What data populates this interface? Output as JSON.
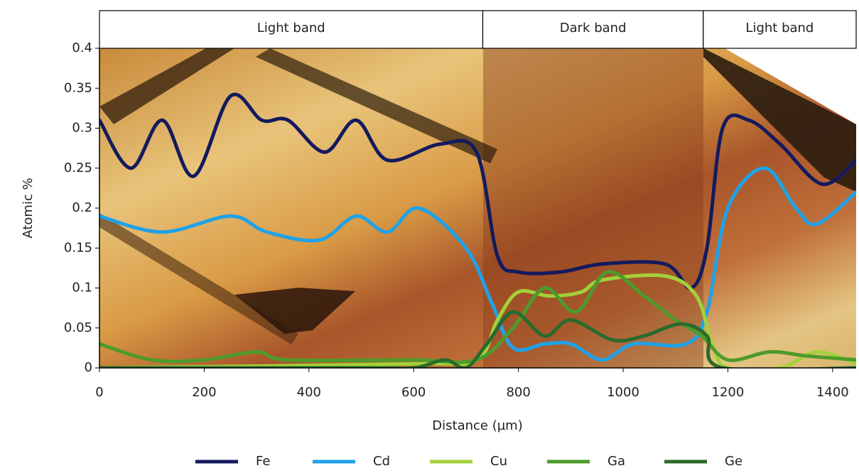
{
  "chart_data": {
    "type": "line",
    "y_label": "Atomic %",
    "x_label": "Distance (µm)",
    "bands": [
      {
        "label": "Light band",
        "start": 0,
        "end": 732
      },
      {
        "label": "Dark band",
        "start": 732,
        "end": 1153
      },
      {
        "label": "Light band",
        "start": 1153,
        "end": 1445
      }
    ],
    "xlim": [
      0,
      1445
    ],
    "ylim": [
      0,
      0.4
    ],
    "xticks": [
      0,
      200,
      400,
      600,
      800,
      1000,
      1200,
      1400
    ],
    "yticks": [
      0,
      0.05,
      0.1,
      0.15,
      0.2,
      0.25,
      0.3,
      0.35,
      0.4
    ],
    "series": [
      {
        "name": "Fe",
        "color": "#141a5e",
        "x": [
          0,
          60,
          120,
          180,
          250,
          310,
          360,
          430,
          490,
          550,
          650,
          720,
          760,
          800,
          880,
          960,
          1080,
          1130,
          1160,
          1190,
          1240,
          1300,
          1380,
          1445
        ],
        "values": [
          0.31,
          0.25,
          0.31,
          0.24,
          0.34,
          0.31,
          0.31,
          0.27,
          0.31,
          0.26,
          0.28,
          0.27,
          0.14,
          0.12,
          0.12,
          0.13,
          0.13,
          0.1,
          0.15,
          0.3,
          0.31,
          0.28,
          0.23,
          0.26
        ]
      },
      {
        "name": "Cd",
        "color": "#1fa2e8",
        "x": [
          0,
          120,
          250,
          320,
          420,
          490,
          550,
          610,
          700,
          750,
          790,
          850,
          900,
          960,
          1020,
          1120,
          1160,
          1200,
          1270,
          1330,
          1370,
          1445
        ],
        "values": [
          0.19,
          0.17,
          0.19,
          0.17,
          0.16,
          0.19,
          0.17,
          0.2,
          0.15,
          0.08,
          0.025,
          0.03,
          0.03,
          0.01,
          0.03,
          0.03,
          0.07,
          0.2,
          0.25,
          0.2,
          0.18,
          0.22
        ]
      },
      {
        "name": "Cu",
        "color": "#a3d13a",
        "x": [
          0,
          600,
          720,
          760,
          800,
          860,
          920,
          960,
          1080,
          1140,
          1170,
          1200,
          1300,
          1370,
          1445
        ],
        "values": [
          0,
          0.005,
          0.01,
          0.06,
          0.095,
          0.09,
          0.095,
          0.11,
          0.115,
          0.09,
          0.03,
          0,
          0,
          0.02,
          0.005
        ]
      },
      {
        "name": "Ga",
        "color": "#4e9a2b",
        "x": [
          0,
          100,
          200,
          300,
          360,
          600,
          720,
          790,
          850,
          910,
          970,
          1040,
          1100,
          1150,
          1200,
          1280,
          1350,
          1445
        ],
        "values": [
          0.03,
          0.01,
          0.01,
          0.02,
          0.01,
          0.01,
          0.01,
          0.05,
          0.1,
          0.07,
          0.12,
          0.09,
          0.06,
          0.04,
          0.01,
          0.02,
          0.015,
          0.01
        ]
      },
      {
        "name": "Ge",
        "color": "#2b6a2c",
        "x": [
          0,
          500,
          600,
          660,
          700,
          740,
          790,
          850,
          900,
          980,
          1040,
          1110,
          1160,
          1190,
          1445
        ],
        "values": [
          0,
          0,
          0,
          0.01,
          0,
          0.03,
          0.07,
          0.04,
          0.06,
          0.035,
          0.04,
          0.055,
          0.04,
          0,
          0
        ]
      }
    ]
  }
}
